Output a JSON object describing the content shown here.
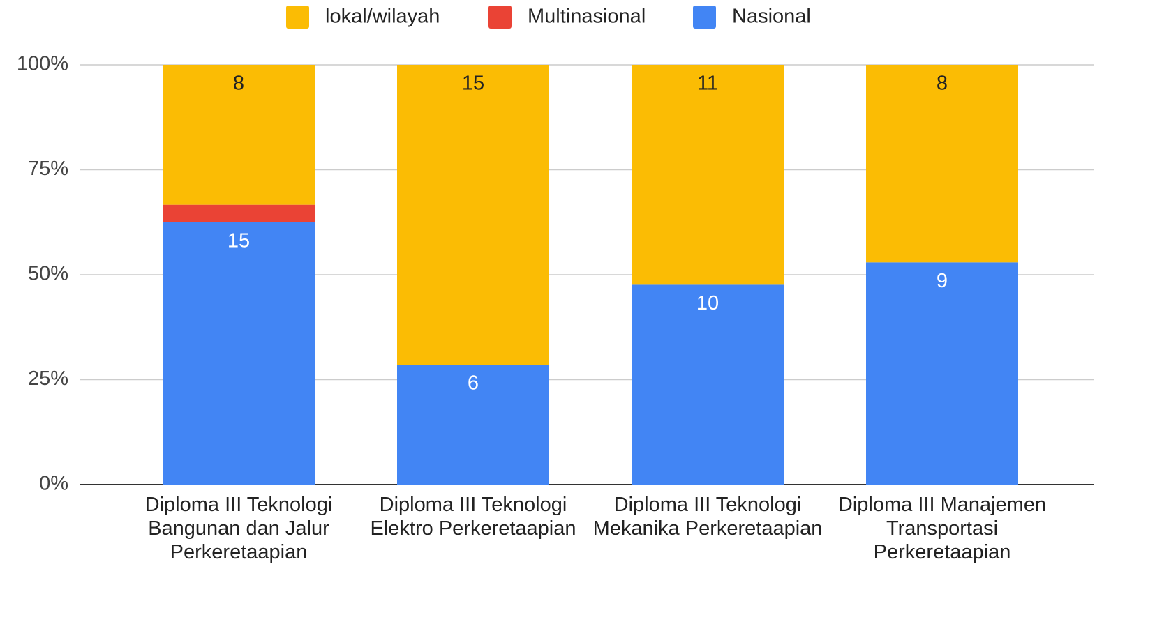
{
  "chart_data": {
    "type": "bar",
    "stacking": "percent",
    "categories": [
      "Diploma III Teknologi Bangunan dan Jalur Perkeretaapian",
      "Diploma III Teknologi Elektro Perkeretaapian",
      "Diploma III Teknologi Mekanika Perkeretaapian",
      "Diploma III Manajemen Transportasi Perkeretaapian"
    ],
    "series": [
      {
        "name": "lokal/wilayah",
        "color": "#fbbc04",
        "values": [
          8,
          15,
          11,
          8
        ]
      },
      {
        "name": "Multinasional",
        "color": "#ea4335",
        "values": [
          1,
          0,
          0,
          0
        ]
      },
      {
        "name": "Nasional",
        "color": "#4285f4",
        "values": [
          15,
          6,
          10,
          9
        ]
      }
    ],
    "ylim": [
      0,
      100
    ],
    "yticks": [
      {
        "value": 0,
        "label": "0%"
      },
      {
        "value": 25,
        "label": "25%"
      },
      {
        "value": 50,
        "label": "50%"
      },
      {
        "value": 75,
        "label": "75%"
      },
      {
        "value": 100,
        "label": "100%"
      }
    ],
    "grid": true,
    "legend": "top"
  }
}
